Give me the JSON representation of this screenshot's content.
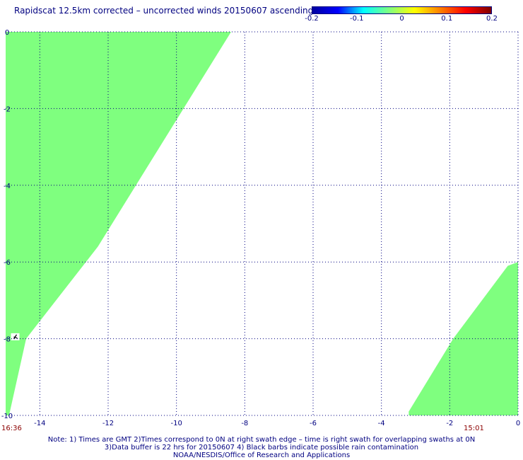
{
  "title": "Rapidscat 12.5km corrected – uncorrected winds 20150607 ascending",
  "colorbar": {
    "labels": [
      "-0.2",
      "-0.1",
      "0",
      "0.1",
      "0.2"
    ],
    "values": [
      -0.2,
      -0.1,
      0,
      0.1,
      0.2
    ],
    "colors": [
      "#0000a0",
      "#0000ff",
      "#00ffff",
      "#80ff80",
      "#ffff00",
      "#ff8000",
      "#ff0000",
      "#800000"
    ]
  },
  "chart_data": {
    "type": "heatmap",
    "title": "Rapidscat 12.5km corrected – uncorrected winds 20150607 ascending",
    "xlim": [
      -15,
      0
    ],
    "ylim": [
      -10,
      0
    ],
    "x_ticks": [
      -14,
      -12,
      -10,
      -8,
      -6,
      -4,
      -2,
      0
    ],
    "y_ticks": [
      0,
      -2,
      -4,
      -6,
      -8,
      -10
    ],
    "grid": true,
    "fill_color": "#7fff7f",
    "fill_value": 0,
    "swaths": [
      {
        "name": "left swath",
        "time_label": "16:36",
        "polygon": [
          [
            -15,
            0
          ],
          [
            -8.4,
            0
          ],
          [
            -12.3,
            -5.6
          ],
          [
            -14.4,
            -8
          ],
          [
            -14.9,
            -10
          ],
          [
            -15,
            -10
          ]
        ]
      },
      {
        "name": "right swath",
        "time_label": "15:01",
        "polygon": [
          [
            -3.2,
            -10
          ],
          [
            0,
            -10
          ],
          [
            0,
            -6
          ],
          [
            -0.3,
            -6.1
          ],
          [
            -1.9,
            -8
          ],
          [
            -3.2,
            -9.9
          ]
        ]
      }
    ],
    "annotation": {
      "x": -14.7,
      "y": -7.95,
      "note": "small black rain-flag barb"
    }
  },
  "notes": {
    "line1": "Note: 1) Times are GMT 2)Times correspond to 0N at right swath edge – time is right swath for overlapping swaths at 0N",
    "line2": "3)Data buffer is 22 hrs for 20150607 4) Black barbs indicate possible rain contamination",
    "line3": "NOAA/NESDIS/Office of Research and Applications"
  },
  "time_labels": {
    "left": "16:36",
    "right": "15:01"
  }
}
